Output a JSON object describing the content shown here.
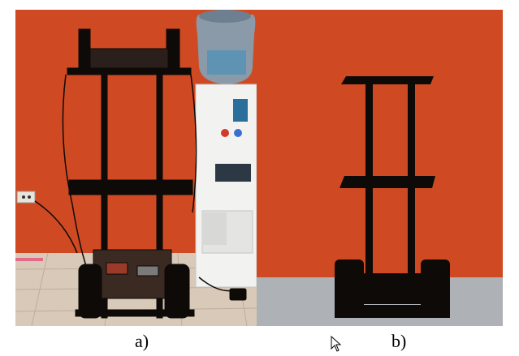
{
  "figure": {
    "panels": [
      {
        "id": "a",
        "label": "a)",
        "content": "photograph-of-robot"
      },
      {
        "id": "b",
        "label": "b)",
        "content": "silhouette-of-robot"
      }
    ],
    "colors": {
      "wall_orange": "#cf4a22",
      "floor_gray": "#aeb1b6",
      "robot_black": "#0d0a08",
      "tile_floor": "#d8c9b8"
    },
    "cursor_icon": "mouse-pointer-icon"
  }
}
